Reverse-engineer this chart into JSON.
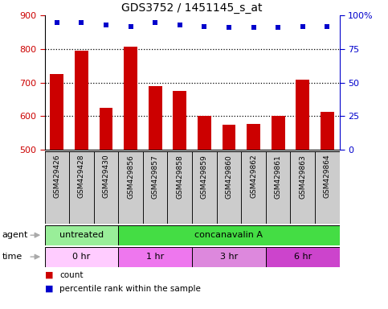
{
  "title": "GDS3752 / 1451145_s_at",
  "samples": [
    "GSM429426",
    "GSM429428",
    "GSM429430",
    "GSM429856",
    "GSM429857",
    "GSM429858",
    "GSM429859",
    "GSM429860",
    "GSM429862",
    "GSM429861",
    "GSM429863",
    "GSM429864"
  ],
  "counts": [
    725,
    795,
    625,
    808,
    690,
    675,
    600,
    575,
    578,
    602,
    708,
    612
  ],
  "percentile_ranks": [
    95,
    95,
    93,
    92,
    95,
    93,
    92,
    91,
    91,
    91,
    92,
    92
  ],
  "ylim_left": [
    500,
    900
  ],
  "ylim_right": [
    0,
    100
  ],
  "yticks_left": [
    500,
    600,
    700,
    800,
    900
  ],
  "yticks_right": [
    0,
    25,
    50,
    75,
    100
  ],
  "ytick_right_labels": [
    "0",
    "25",
    "50",
    "75",
    "100%"
  ],
  "bar_color": "#cc0000",
  "dot_color": "#0000cc",
  "grid_dotted_at": [
    600,
    700,
    800
  ],
  "agent_groups": [
    {
      "label": "untreated",
      "start": 0,
      "end": 3,
      "color": "#99ee99"
    },
    {
      "label": "concanavalin A",
      "start": 3,
      "end": 12,
      "color": "#44dd44"
    }
  ],
  "time_groups": [
    {
      "label": "0 hr",
      "start": 0,
      "end": 3,
      "color": "#ffccff"
    },
    {
      "label": "1 hr",
      "start": 3,
      "end": 6,
      "color": "#ee77ee"
    },
    {
      "label": "3 hr",
      "start": 6,
      "end": 9,
      "color": "#dd88dd"
    },
    {
      "label": "6 hr",
      "start": 9,
      "end": 12,
      "color": "#cc44cc"
    }
  ],
  "left_color": "#cc0000",
  "right_color": "#0000cc",
  "bg_color": "#ffffff",
  "sample_bg_color": "#cccccc",
  "legend_items": [
    {
      "color": "#cc0000",
      "label": "count"
    },
    {
      "color": "#0000cc",
      "label": "percentile rank within the sample"
    }
  ],
  "arrow_color": "#aaaaaa"
}
